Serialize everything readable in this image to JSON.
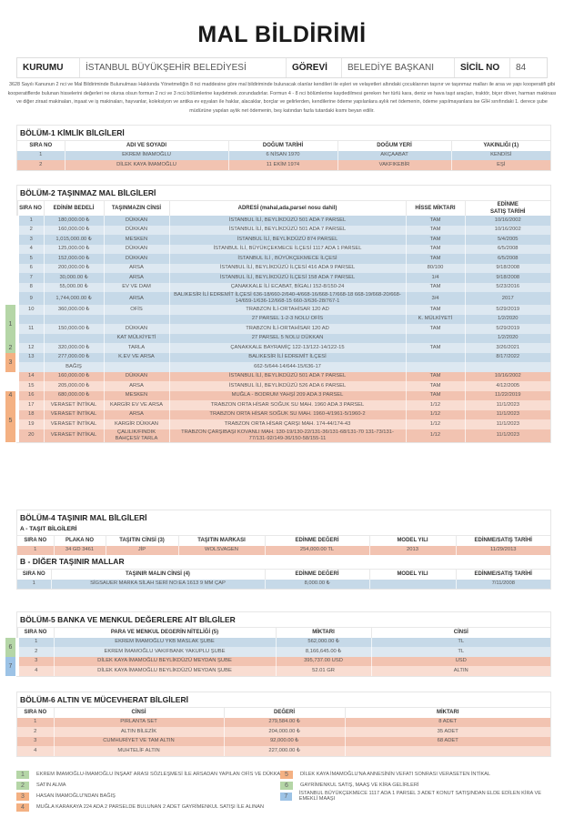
{
  "title": "MAL BİLDİRİMİ",
  "header": {
    "kurum_label": "KURUMU",
    "kurum": "İSTANBUL BÜYÜKŞEHİR BELEDİYESİ",
    "gorev_label": "GÖREVİ",
    "gorev": "BELEDİYE BAŞKANI",
    "sicil_label": "SİCİL NO",
    "sicil": "84"
  },
  "intro": "3628 Sayılı Kanunun 2 nci ve Mal Bildiriminde Bulunulması Hakkında Yönetmeliğin 8 nci maddesine göre mal bildiriminde bulunacak olanlar kendileri ile eşleri ve velayetleri altındaki çocuklarının taşınır ve taşınmaz malları ile arsa ve yapı kooperatifi gibi kooperatiflerde bulunan hisselerini değerleri ne olursa olsun formun 2 nci ve 3 ncü bölümlerine kaydetmek zorundadırlar. Formun 4 - 8 nci bölümlerine kaydedilmesi gereken her türlü kara, deniz ve hava taşıt araçları, traktör, biçer döver, harman makinası ve diğer ziraat makinaları, inşaat ve iş makinaları, hayvanlar, koleksiyon ve antika ev eşyaları ile haklar, alacaklar, borçlar ve gelirlerden, kendilerine ödeme yapılanlara aylık net ödemenin, ödeme yapılmayanlara ise GİH sınıfındaki 1. derece şube müdürüne yapılan aylık net ödemenin, beş katından fazla tutardaki kısmı beyan edilir.",
  "colors": {
    "blue": "#c6d9e8",
    "light_blue": "#dde8f1",
    "salmon": "#f2c3b1",
    "light_salmon": "#f9ddd2",
    "green_ref": "#b5d6a7",
    "orange_ref": "#f4b183",
    "blue_ref": "#9dc3e6"
  },
  "bolum1": {
    "title": "BÖLÜM-1 KİMLİK BİLGİLERİ",
    "headers": [
      "SIRA NO",
      "ADI VE SOYADI",
      "DOĞUM TARİHİ",
      "DOĞUM YERİ",
      "YAKINLIĞI (1)"
    ],
    "rows": [
      {
        "tone": "blue",
        "cells": [
          "1",
          "EKREM İMAMOĞLU",
          "6 NİSAN 1970",
          "AKÇAABAT",
          "KENDİSİ"
        ]
      },
      {
        "tone": "salmon",
        "cells": [
          "2",
          "DİLEK KAYA İMAMOĞLU",
          "11 EKİM 1974",
          "VAKFIKEBİR",
          "EŞİ"
        ]
      }
    ]
  },
  "bolum2": {
    "title": "BÖLÜM-2 TAŞINMAZ MAL BİLGİLERİ",
    "headers": [
      "SIRA NO",
      "EDİNİM BEDELİ",
      "TAŞINMAZIN CİNSİ",
      "ADRESİ (mahal,ada,parsel nosu dahil)",
      "HİSSE MİKTARI",
      "EDİNME\nSATIŞ TARİHİ"
    ],
    "rows": [
      {
        "tone": "blue",
        "cells": [
          "1",
          "180,000.00 ₺",
          "DÜKKAN",
          "İSTANBUL İLİ, BEYLİKDÜZÜ 501 ADA 7 PARSEL",
          "TAM",
          "10/16/2002"
        ]
      },
      {
        "tone": "lblue",
        "cells": [
          "2",
          "160,000.00 ₺",
          "DÜKKAN",
          "İSTANBUL İLİ, BEYLİKDÜZÜ 501 ADA 7 PARSEL",
          "TAM",
          "10/16/2002"
        ]
      },
      {
        "tone": "blue",
        "cells": [
          "3",
          "1,015,000.00 ₺",
          "MESKEN",
          "İSTANBUL İLİ, BEYLİKDÜZÜ 874 PARSEL",
          "TAM",
          "5/4/2005"
        ]
      },
      {
        "tone": "lblue",
        "cells": [
          "4",
          "125,000.00 ₺",
          "DÜKKAN",
          "İSTANBUL İLİ, BÜYÜKÇEKMECE İLÇESİ 1117 ADA 1 PARSEL",
          "TAM",
          "6/5/2008"
        ]
      },
      {
        "tone": "blue",
        "cells": [
          "5",
          "152,000.00 ₺",
          "DÜKKAN",
          "İSTANBUL İLİ , BÜYÜKÇEKMECE İLÇESİ",
          "TAM",
          "6/5/2008"
        ]
      },
      {
        "tone": "lblue",
        "cells": [
          "6",
          "200,000.00 ₺",
          "ARSA",
          "İSTANBUL İLİ, BEYLİKDÜZÜ İLÇESİ 416 ADA 9 PARSEL",
          "80/100",
          "9/18/2008"
        ]
      },
      {
        "tone": "blue",
        "cells": [
          "7",
          "30,000.00 ₺",
          "ARSA",
          "İSTANBUL İLİ, BEYLİKDÜZÜ İLÇESİ 158 ADA 7 PARSEL",
          "1/4",
          "9/18/2008"
        ]
      },
      {
        "tone": "lblue",
        "cells": [
          "8",
          "55,000.00 ₺",
          "EV VE DAM",
          "ÇANAKKALE İLİ ECABAT, BİGALI 152-8/150-24",
          "TAM",
          "5/23/2016"
        ]
      },
      {
        "tone": "blue",
        "cells": [
          "9",
          "1,744,000.00 ₺",
          "ARSA",
          "BALIKESİR İLİ EDREMİT İLÇESİ 636-18/660-2/640-4/668-16/668-17/668-18 668-19/668-20/668-14/659-1/636-12/668-15 660-3/636-28/767-1",
          "3/4",
          "2017"
        ]
      },
      {
        "tone": "lblue",
        "group": "1",
        "cells": [
          "10",
          "360,000.00 ₺",
          "OFİS",
          "TRABZON İLİ-ORTAHİSAR 120 AD",
          "TAM",
          "5/29/2019"
        ]
      },
      {
        "tone": "blue",
        "group": "1",
        "cells": [
          "",
          "",
          "",
          "27 PARSEL 1-2-3 NOLU OFİS",
          "K. MÜLKİYETİ",
          "1/2/2020"
        ]
      },
      {
        "tone": "lblue",
        "group": "1",
        "cells": [
          "11",
          "150,000.00 ₺",
          "DÜKKAN",
          "TRABZON İLİ-ORTAHİSAR 120 AD",
          "TAM",
          "5/29/2019"
        ]
      },
      {
        "tone": "blue",
        "group": "1",
        "cells": [
          "",
          "",
          "KAT MÜLKİYETİ",
          "27 PARSEL 5 NOLU DÜKKAN",
          "",
          "1/2/2020"
        ]
      },
      {
        "tone": "lblue",
        "group": "2",
        "cells": [
          "12",
          "320,000.00 ₺",
          "TARLA",
          "ÇANAKKALE BAYRAMİÇ 122-13/122-14/122-15",
          "TAM",
          "3/26/2021"
        ]
      },
      {
        "tone": "blue",
        "group": "3",
        "cells": [
          "13",
          "277,000.00 ₺",
          "K.EV VE ARSA",
          "BALIKESİR İLİ EDREMİT İLÇESİ",
          "",
          "8/17/2022"
        ]
      },
      {
        "tone": "lblue",
        "group": "3",
        "cells": [
          "",
          "BAĞIŞ",
          "",
          "662-5/644-14/644-15/636-17",
          "",
          ""
        ]
      },
      {
        "tone": "salmon",
        "cells": [
          "14",
          "160,000.00 ₺",
          "DÜKKAN",
          "İSTANBUL İLİ, BEYLİKDÜZÜ 501 ADA 7 PARSEL",
          "TAM",
          "10/16/2002"
        ]
      },
      {
        "tone": "lsalmon",
        "cells": [
          "15",
          "205,000.00 ₺",
          "ARSA",
          "İSTANBUL İLİ, BEYLİKDÜZÜ 526 ADA 6 PARSEL",
          "TAM",
          "4/12/2005"
        ]
      },
      {
        "tone": "salmon",
        "group": "4",
        "cells": [
          "16",
          "680,000.00 ₺",
          "MESKEN",
          "MUĞLA - BODRUM YAHŞİ 209 ADA 3 PARSEL",
          "TAM",
          "11/22/2019"
        ]
      },
      {
        "tone": "lsalmon",
        "group": "5",
        "cells": [
          "17",
          "VERASET İNTİKAL",
          "KARGİR EV VE ARSA",
          "TRABZON ORTA HİSAR SOĞUK SU MAH. 1960 ADA 3 PARSEL",
          "1/12",
          "11/1/2023"
        ]
      },
      {
        "tone": "salmon",
        "group": "5",
        "cells": [
          "18",
          "VERASET İNTİKAL",
          "ARSA",
          "TRABZON ORTA HİSAR SOĞUK SU MAH. 1960-4/1961-5/1960-2",
          "1/12",
          "11/1/2023"
        ]
      },
      {
        "tone": "lsalmon",
        "group": "5",
        "cells": [
          "19",
          "VERASET İNTİKAL",
          "KARGİR DÜKKAN",
          "TRABZON ORTA HİSAR ÇARŞI MAH. 174-44/174-43",
          "1/12",
          "11/1/2023"
        ]
      },
      {
        "tone": "salmon",
        "group": "5",
        "cells": [
          "20",
          "VERASET İNTİKAL",
          "ÇALILIK/FINDIK BAHÇESİ/ TARLA",
          "TRABZON ÇARŞIBAŞI KOVANLI MAH. 130-19/130-22/131-36/131-68/131-70 131-73/131-77/131-92/149-36/150-58/155-11",
          "1/12",
          "11/1/2023"
        ]
      }
    ]
  },
  "bolum4": {
    "title": "BÖLÜM-4 TAŞINIR MAL BİLGİLERİ",
    "a": {
      "title": "A - TAŞIT BİLGİLERİ",
      "headers": [
        "SIRA NO",
        "PLAKA NO",
        "TAŞITIN CİNSİ (3)",
        "TAŞITIN MARKASI",
        "EDİNME DEĞERİ",
        "MODEL YILI",
        "EDİNME/SATIŞ TARİHİ"
      ],
      "rows": [
        {
          "tone": "salmon",
          "cells": [
            "1",
            "34 GD 3461",
            "JİP",
            "WOLSVAGEN",
            "254,000.00 TL",
            "2013",
            "11/29/2013"
          ]
        }
      ]
    },
    "b": {
      "title": "B - DİĞER TAŞINIR MALLAR",
      "headers": [
        "SIRA NO",
        "TAŞINIR MALIN CİNSİ (4)",
        "EDİNME DEĞERİ",
        "MODEL YILI",
        "EDİNME/SATIŞ TARİHİ"
      ],
      "rows": [
        {
          "tone": "blue",
          "cells": [
            "1",
            "SİGSAUER MARKA SİLAH SERİ NO:EA 1613 9 MM ÇAP",
            "8,000.00 ₺",
            "",
            "7/11/2008"
          ]
        }
      ]
    }
  },
  "bolum5": {
    "title": "BÖLÜM-5 BANKA VE MENKUL DEĞERLERE AİT BİLGİLER",
    "headers": [
      "SIRA NO",
      "PARA VE MENKUL DEGERİN NİTELİĞİ (5)",
      "MİKTARI",
      "CİNSİ"
    ],
    "rows": [
      {
        "tone": "blue",
        "group": "6",
        "cells": [
          "1",
          "EKREM İMAMOĞLU YKB MASLAK ŞUBE",
          "562,000.00 ₺",
          "TL"
        ]
      },
      {
        "tone": "lblue",
        "group": "6",
        "cells": [
          "2",
          "EKREM İMAMOĞLU VAKIFBANK YAKUPLU ŞUBE",
          "8,166,645.00 ₺",
          "TL"
        ]
      },
      {
        "tone": "salmon",
        "group": "7",
        "cells": [
          "3",
          "DİLEK KAYA İMAMOĞLU BEYLİKDÜZÜ MEYDAN ŞUBE",
          "395,737.00 USD",
          "USD"
        ]
      },
      {
        "tone": "lsalmon",
        "group": "7",
        "cells": [
          "4",
          "DİLEK KAYA İMAMOĞLU BEYLİKDÜZÜ MEYDAN ŞUBE",
          "52.01 GR",
          "ALTIN"
        ]
      }
    ]
  },
  "bolum6": {
    "title": "BÖLÜM-6 ALTIN VE MÜCEVHERAT BİLGİLERİ",
    "headers": [
      "SIRA NO",
      "CİNSİ",
      "DEĞERİ",
      "MİKTARI"
    ],
    "rows": [
      {
        "tone": "salmon",
        "cells": [
          "1",
          "PIRLANTA SET",
          "279,584.00 ₺",
          "8 ADET"
        ]
      },
      {
        "tone": "lsalmon",
        "cells": [
          "2",
          "ALTIN BİLEZİK",
          "204,000.00 ₺",
          "35 ADET"
        ]
      },
      {
        "tone": "salmon",
        "cells": [
          "3",
          "CUMHURİYET VE TAM ALTIN",
          "92,000.00 ₺",
          "68 ADET"
        ]
      },
      {
        "tone": "lsalmon",
        "cells": [
          "4",
          "MUHTELİF ALTIN",
          "227,000.00 ₺",
          ""
        ]
      }
    ]
  },
  "legend": [
    {
      "n": "1",
      "color": "green",
      "text": "EKREM İMAMOĞLU-İMAMOĞLU İNŞAAT ARASI SÖZLEŞMESİ İLE ARSADAN YAPILAN OFİS VE DÜKKAN"
    },
    {
      "n": "2",
      "color": "green",
      "text": "SATIN ALMA"
    },
    {
      "n": "3",
      "color": "orange",
      "text": "HASAN İMAMOĞLU'NDAN BAĞIŞ"
    },
    {
      "n": "4",
      "color": "orange",
      "text": "MUĞLA KARAKAYA 224 ADA 2 PARSELDE BULUNAN 2 ADET GAYRİMENKUL SATIŞI İLE ALINAN"
    },
    {
      "n": "5",
      "color": "orange",
      "text": "DİLEK KAYA İMAMOĞLU'NA ANNESİNİN VEFATI SONRASI VERASETEN İNTİKAL"
    },
    {
      "n": "6",
      "color": "green",
      "text": "GAYRİMENKUL SATIŞ, MAAŞ VE KİRA GELİRLERİ"
    },
    {
      "n": "7",
      "color": "blue",
      "text": "İSTANBUL BÜYÜKÇEKMECE 1117 ADA 1 PARSEL 3 ADET KONUT SATIŞINDAN ELDE EDİLEN KİRA VE EMEKLİ MAAŞI"
    }
  ]
}
